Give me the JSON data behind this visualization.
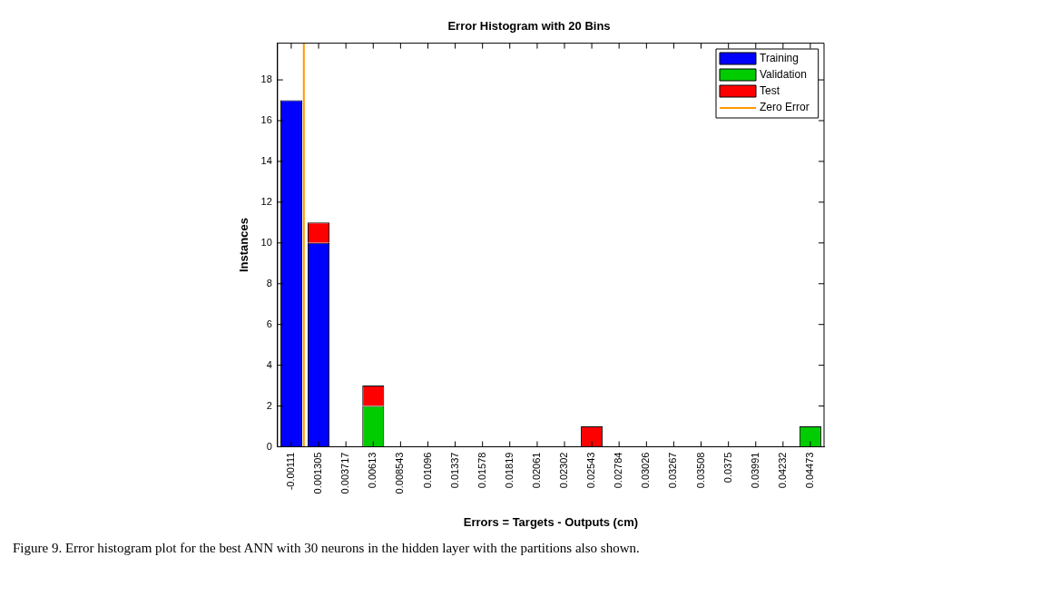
{
  "chart_data": {
    "type": "bar",
    "title": "Error Histogram with 20 Bins",
    "xlabel": "Errors = Targets - Outputs (cm)",
    "ylabel": "Instances",
    "x": [
      -0.00111,
      0.001305,
      0.003717,
      0.00613,
      0.008543,
      0.01096,
      0.01337,
      0.01578,
      0.01819,
      0.02061,
      0.02302,
      0.02543,
      0.02784,
      0.03026,
      0.03267,
      0.03508,
      0.0375,
      0.03991,
      0.04232,
      0.04473
    ],
    "stacked": true,
    "series": [
      {
        "name": "Training",
        "color": "#0000ff",
        "values": [
          17,
          10,
          0,
          0,
          0,
          0,
          0,
          0,
          0,
          0,
          0,
          0,
          0,
          0,
          0,
          0,
          0,
          0,
          0,
          0
        ]
      },
      {
        "name": "Validation",
        "color": "#00cc00",
        "values": [
          0,
          0,
          0,
          2,
          0,
          0,
          0,
          0,
          0,
          0,
          0,
          0,
          0,
          0,
          0,
          0,
          0,
          0,
          0,
          1
        ]
      },
      {
        "name": "Test",
        "color": "#ff0000",
        "values": [
          0,
          1,
          0,
          1,
          0,
          0,
          0,
          0,
          0,
          0,
          0,
          1,
          0,
          0,
          0,
          0,
          0,
          0,
          0,
          0
        ]
      },
      {
        "name": "Zero Error",
        "type": "line",
        "color": "#ff9900",
        "x": [
          0,
          0
        ],
        "values": [
          0,
          19.8
        ]
      }
    ],
    "xlim": [
      -0.00232,
      0.04594
    ],
    "xticks": [
      -0.00111,
      0.001305,
      0.003717,
      0.00613,
      0.008543,
      0.01096,
      0.01337,
      0.01578,
      0.01819,
      0.02061,
      0.02302,
      0.02543,
      0.02784,
      0.03026,
      0.03267,
      0.03508,
      0.0375,
      0.03991,
      0.04232,
      0.04473
    ],
    "ylim": [
      0,
      19.8
    ],
    "yticks": [
      0,
      2,
      4,
      6,
      8,
      10,
      12,
      14,
      16,
      18
    ],
    "grid": false,
    "legend": "top right",
    "annotations": [
      "Figure 9. Error histogram plot for the best ANN with 30 neurons in the hidden layer with the partitions also shown."
    ]
  }
}
